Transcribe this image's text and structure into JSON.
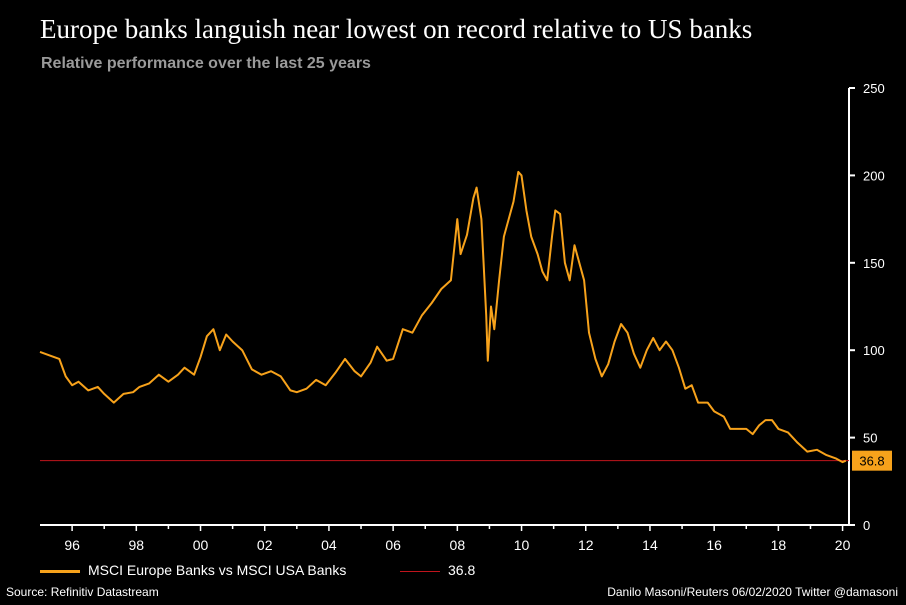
{
  "header": {
    "title": "Europe banks languish near lowest on record relative to US banks",
    "subtitle": "Relative performance over the last 25 years"
  },
  "colors": {
    "background": "#000000",
    "series": "#f7a21b",
    "reference_line": "#c0141c",
    "axis": "#ffffff",
    "label_box": "#f7a21b"
  },
  "chart_data": {
    "type": "line",
    "title": "Europe banks languish near lowest on record relative to US banks",
    "subtitle": "Relative performance over the last 25 years",
    "xlabel": "",
    "ylabel": "",
    "xlim": [
      1995.0,
      2020.2
    ],
    "ylim": [
      0,
      250
    ],
    "yticks": [
      0,
      50,
      100,
      150,
      200,
      250
    ],
    "xticks": [
      {
        "year": 1996,
        "label": "96"
      },
      {
        "year": 1998,
        "label": "98"
      },
      {
        "year": 2000,
        "label": "00"
      },
      {
        "year": 2002,
        "label": "02"
      },
      {
        "year": 2004,
        "label": "04"
      },
      {
        "year": 2006,
        "label": "06"
      },
      {
        "year": 2008,
        "label": "08"
      },
      {
        "year": 2010,
        "label": "10"
      },
      {
        "year": 2012,
        "label": "12"
      },
      {
        "year": 2014,
        "label": "14"
      },
      {
        "year": 2016,
        "label": "16"
      },
      {
        "year": 2018,
        "label": "18"
      },
      {
        "year": 2020,
        "label": "20"
      }
    ],
    "axis_position": "right",
    "series": [
      {
        "name": "MSCI Europe Banks vs MSCI USA Banks",
        "x": [
          1995.0,
          1995.3,
          1995.6,
          1995.8,
          1996.0,
          1996.2,
          1996.5,
          1996.8,
          1997.0,
          1997.3,
          1997.6,
          1997.9,
          1998.1,
          1998.4,
          1998.7,
          1999.0,
          1999.3,
          1999.5,
          1999.8,
          2000.0,
          2000.2,
          2000.4,
          2000.6,
          2000.8,
          2001.0,
          2001.3,
          2001.6,
          2001.9,
          2002.2,
          2002.5,
          2002.8,
          2003.0,
          2003.3,
          2003.6,
          2003.9,
          2004.2,
          2004.5,
          2004.8,
          2005.0,
          2005.3,
          2005.5,
          2005.8,
          2006.0,
          2006.3,
          2006.6,
          2006.9,
          2007.2,
          2007.5,
          2007.8,
          2008.0,
          2008.1,
          2008.3,
          2008.5,
          2008.6,
          2008.75,
          2008.9,
          2008.95,
          2009.05,
          2009.15,
          2009.3,
          2009.45,
          2009.6,
          2009.75,
          2009.9,
          2010.0,
          2010.15,
          2010.3,
          2010.5,
          2010.65,
          2010.8,
          2010.95,
          2011.05,
          2011.2,
          2011.35,
          2011.5,
          2011.65,
          2011.8,
          2011.95,
          2012.1,
          2012.3,
          2012.5,
          2012.7,
          2012.9,
          2013.1,
          2013.3,
          2013.5,
          2013.7,
          2013.9,
          2014.1,
          2014.3,
          2014.5,
          2014.7,
          2014.9,
          2015.1,
          2015.3,
          2015.5,
          2015.8,
          2016.0,
          2016.3,
          2016.5,
          2016.8,
          2017.0,
          2017.2,
          2017.4,
          2017.6,
          2017.8,
          2018.0,
          2018.3,
          2018.6,
          2018.9,
          2019.2,
          2019.5,
          2019.8,
          2020.0,
          2020.1
        ],
        "values": [
          99,
          97,
          95,
          85,
          80,
          82,
          77,
          79,
          75,
          70,
          75,
          76,
          79,
          81,
          86,
          82,
          86,
          90,
          86,
          96,
          108,
          112,
          100,
          109,
          105,
          100,
          89,
          86,
          88,
          85,
          77,
          76,
          78,
          83,
          80,
          87,
          95,
          88,
          85,
          93,
          102,
          94,
          95,
          112,
          110,
          120,
          127,
          135,
          140,
          175,
          155,
          166,
          187,
          193,
          175,
          120,
          94,
          125,
          112,
          140,
          165,
          175,
          185,
          202,
          200,
          180,
          165,
          155,
          145,
          140,
          165,
          180,
          178,
          150,
          140,
          160,
          150,
          140,
          110,
          95,
          85,
          92,
          105,
          115,
          110,
          98,
          90,
          100,
          107,
          100,
          105,
          100,
          90,
          78,
          80,
          70,
          70,
          65,
          62,
          55,
          55,
          55,
          52,
          57,
          60,
          60,
          55,
          53,
          47,
          42,
          43,
          40,
          38,
          36,
          36.8
        ]
      },
      {
        "name": "36.8",
        "type": "reference",
        "value": 36.8
      }
    ],
    "end_label": "36.8"
  },
  "legend": {
    "series_label": "MSCI Europe Banks vs MSCI USA Banks",
    "reference_label": "36.8"
  },
  "footer": {
    "source": "Source: Refinitiv Datastream",
    "credit": "Danilo Masoni/Reuters 06/02/2020 Twitter @damasoni"
  }
}
